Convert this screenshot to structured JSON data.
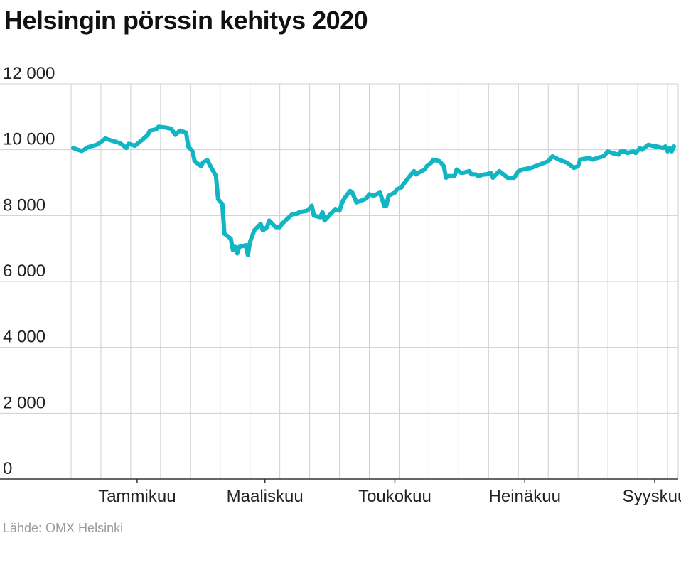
{
  "title": "Helsingin pörssin kehitys 2020",
  "source": "Lähde: OMX Helsinki",
  "colors": {
    "line": "#12b5c4",
    "grid": "#cfcfcf",
    "axis": "#333333"
  },
  "chart_data": {
    "type": "line",
    "title": "Helsingin pörssin kehitys 2020",
    "xlabel": "",
    "ylabel": "",
    "ylim": [
      0,
      12000
    ],
    "yticks": [
      {
        "value": 0,
        "label": "0"
      },
      {
        "value": 2000,
        "label": "2 000"
      },
      {
        "value": 4000,
        "label": "4 000"
      },
      {
        "value": 6000,
        "label": "6 000"
      },
      {
        "value": 8000,
        "label": "8 000"
      },
      {
        "value": 10000,
        "label": "10 000"
      },
      {
        "value": 12000,
        "label": "12 000"
      }
    ],
    "xlim": [
      "2020-01-01",
      "2020-10-12"
    ],
    "xticks": [
      {
        "date": "2020-02-01",
        "label": "Tammikuu"
      },
      {
        "date": "2020-04-01",
        "label": "Maaliskuu"
      },
      {
        "date": "2020-06-01",
        "label": "Toukokuu"
      },
      {
        "date": "2020-08-01",
        "label": "Heinäkuu"
      },
      {
        "date": "2020-10-01",
        "label": "Syyskuu"
      }
    ],
    "grid": true,
    "series": [
      {
        "points": [
          [
            "2020-01-02",
            10050
          ],
          [
            "2020-01-06",
            9960
          ],
          [
            "2020-01-09",
            10080
          ],
          [
            "2020-01-13",
            10150
          ],
          [
            "2020-01-16",
            10280
          ],
          [
            "2020-01-17",
            10340
          ],
          [
            "2020-01-20",
            10280
          ],
          [
            "2020-01-24",
            10200
          ],
          [
            "2020-01-27",
            10050
          ],
          [
            "2020-01-28",
            10180
          ],
          [
            "2020-01-31",
            10120
          ],
          [
            "2020-02-03",
            10280
          ],
          [
            "2020-02-06",
            10450
          ],
          [
            "2020-02-07",
            10580
          ],
          [
            "2020-02-10",
            10620
          ],
          [
            "2020-02-11",
            10700
          ],
          [
            "2020-02-14",
            10680
          ],
          [
            "2020-02-17",
            10640
          ],
          [
            "2020-02-19",
            10450
          ],
          [
            "2020-02-21",
            10580
          ],
          [
            "2020-02-24",
            10520
          ],
          [
            "2020-02-25",
            10100
          ],
          [
            "2020-02-27",
            9950
          ],
          [
            "2020-02-28",
            9650
          ],
          [
            "2020-03-02",
            9500
          ],
          [
            "2020-03-03",
            9620
          ],
          [
            "2020-03-05",
            9680
          ],
          [
            "2020-03-06",
            9550
          ],
          [
            "2020-03-09",
            9200
          ],
          [
            "2020-03-10",
            8500
          ],
          [
            "2020-03-12",
            8350
          ],
          [
            "2020-03-13",
            7450
          ],
          [
            "2020-03-16",
            7300
          ],
          [
            "2020-03-17",
            6950
          ],
          [
            "2020-03-18",
            7050
          ],
          [
            "2020-03-19",
            6850
          ],
          [
            "2020-03-20",
            7050
          ],
          [
            "2020-03-23",
            7100
          ],
          [
            "2020-03-24",
            6800
          ],
          [
            "2020-03-25",
            7200
          ],
          [
            "2020-03-27",
            7550
          ],
          [
            "2020-03-30",
            7750
          ],
          [
            "2020-03-31",
            7550
          ],
          [
            "2020-04-02",
            7650
          ],
          [
            "2020-04-03",
            7850
          ],
          [
            "2020-04-06",
            7650
          ],
          [
            "2020-04-08",
            7650
          ],
          [
            "2020-04-09",
            7750
          ],
          [
            "2020-04-14",
            8050
          ],
          [
            "2020-04-16",
            8050
          ],
          [
            "2020-04-17",
            8100
          ],
          [
            "2020-04-21",
            8150
          ],
          [
            "2020-04-23",
            8300
          ],
          [
            "2020-04-24",
            8000
          ],
          [
            "2020-04-27",
            7950
          ],
          [
            "2020-04-28",
            8100
          ],
          [
            "2020-04-29",
            7850
          ],
          [
            "2020-05-04",
            8200
          ],
          [
            "2020-05-06",
            8150
          ],
          [
            "2020-05-07",
            8350
          ],
          [
            "2020-05-08",
            8500
          ],
          [
            "2020-05-11",
            8750
          ],
          [
            "2020-05-12",
            8700
          ],
          [
            "2020-05-14",
            8400
          ],
          [
            "2020-05-18",
            8500
          ],
          [
            "2020-05-19",
            8550
          ],
          [
            "2020-05-20",
            8650
          ],
          [
            "2020-05-22",
            8600
          ],
          [
            "2020-05-25",
            8700
          ],
          [
            "2020-05-27",
            8300
          ],
          [
            "2020-05-28",
            8300
          ],
          [
            "2020-05-29",
            8600
          ],
          [
            "2020-06-01",
            8700
          ],
          [
            "2020-06-02",
            8800
          ],
          [
            "2020-06-04",
            8850
          ],
          [
            "2020-06-05",
            8950
          ],
          [
            "2020-06-08",
            9200
          ],
          [
            "2020-06-10",
            9350
          ],
          [
            "2020-06-11",
            9250
          ],
          [
            "2020-06-12",
            9300
          ],
          [
            "2020-06-15",
            9400
          ],
          [
            "2020-06-16",
            9500
          ],
          [
            "2020-06-18",
            9600
          ],
          [
            "2020-06-19",
            9700
          ],
          [
            "2020-06-22",
            9650
          ],
          [
            "2020-06-24",
            9500
          ],
          [
            "2020-06-25",
            9150
          ],
          [
            "2020-06-26",
            9200
          ],
          [
            "2020-06-29",
            9200
          ],
          [
            "2020-06-30",
            9400
          ],
          [
            "2020-07-02",
            9300
          ],
          [
            "2020-07-03",
            9300
          ],
          [
            "2020-07-06",
            9350
          ],
          [
            "2020-07-07",
            9250
          ],
          [
            "2020-07-09",
            9250
          ],
          [
            "2020-07-10",
            9200
          ],
          [
            "2020-07-13",
            9250
          ],
          [
            "2020-07-14",
            9250
          ],
          [
            "2020-07-16",
            9300
          ],
          [
            "2020-07-17",
            9150
          ],
          [
            "2020-07-20",
            9350
          ],
          [
            "2020-07-22",
            9250
          ],
          [
            "2020-07-24",
            9150
          ],
          [
            "2020-07-27",
            9150
          ],
          [
            "2020-07-29",
            9350
          ],
          [
            "2020-07-31",
            9400
          ],
          [
            "2020-08-04",
            9450
          ],
          [
            "2020-08-06",
            9500
          ],
          [
            "2020-08-10",
            9600
          ],
          [
            "2020-08-12",
            9650
          ],
          [
            "2020-08-14",
            9800
          ],
          [
            "2020-08-17",
            9700
          ],
          [
            "2020-08-19",
            9650
          ],
          [
            "2020-08-21",
            9600
          ],
          [
            "2020-08-24",
            9450
          ],
          [
            "2020-08-26",
            9500
          ],
          [
            "2020-08-27",
            9700
          ],
          [
            "2020-08-31",
            9750
          ],
          [
            "2020-09-02",
            9700
          ],
          [
            "2020-09-04",
            9750
          ],
          [
            "2020-09-07",
            9800
          ],
          [
            "2020-09-09",
            9950
          ],
          [
            "2020-09-11",
            9900
          ],
          [
            "2020-09-14",
            9850
          ],
          [
            "2020-09-15",
            9950
          ],
          [
            "2020-09-17",
            9950
          ],
          [
            "2020-09-18",
            9900
          ],
          [
            "2020-09-21",
            9950
          ],
          [
            "2020-09-22",
            9900
          ],
          [
            "2020-09-24",
            10050
          ],
          [
            "2020-09-25",
            10000
          ],
          [
            "2020-09-28",
            10150
          ],
          [
            "2020-10-01",
            10100
          ],
          [
            "2020-10-02",
            10100
          ],
          [
            "2020-10-05",
            10050
          ],
          [
            "2020-10-06",
            10100
          ],
          [
            "2020-10-07",
            9950
          ],
          [
            "2020-10-08",
            10050
          ],
          [
            "2020-10-09",
            9950
          ],
          [
            "2020-10-10",
            10100
          ]
        ]
      }
    ]
  }
}
